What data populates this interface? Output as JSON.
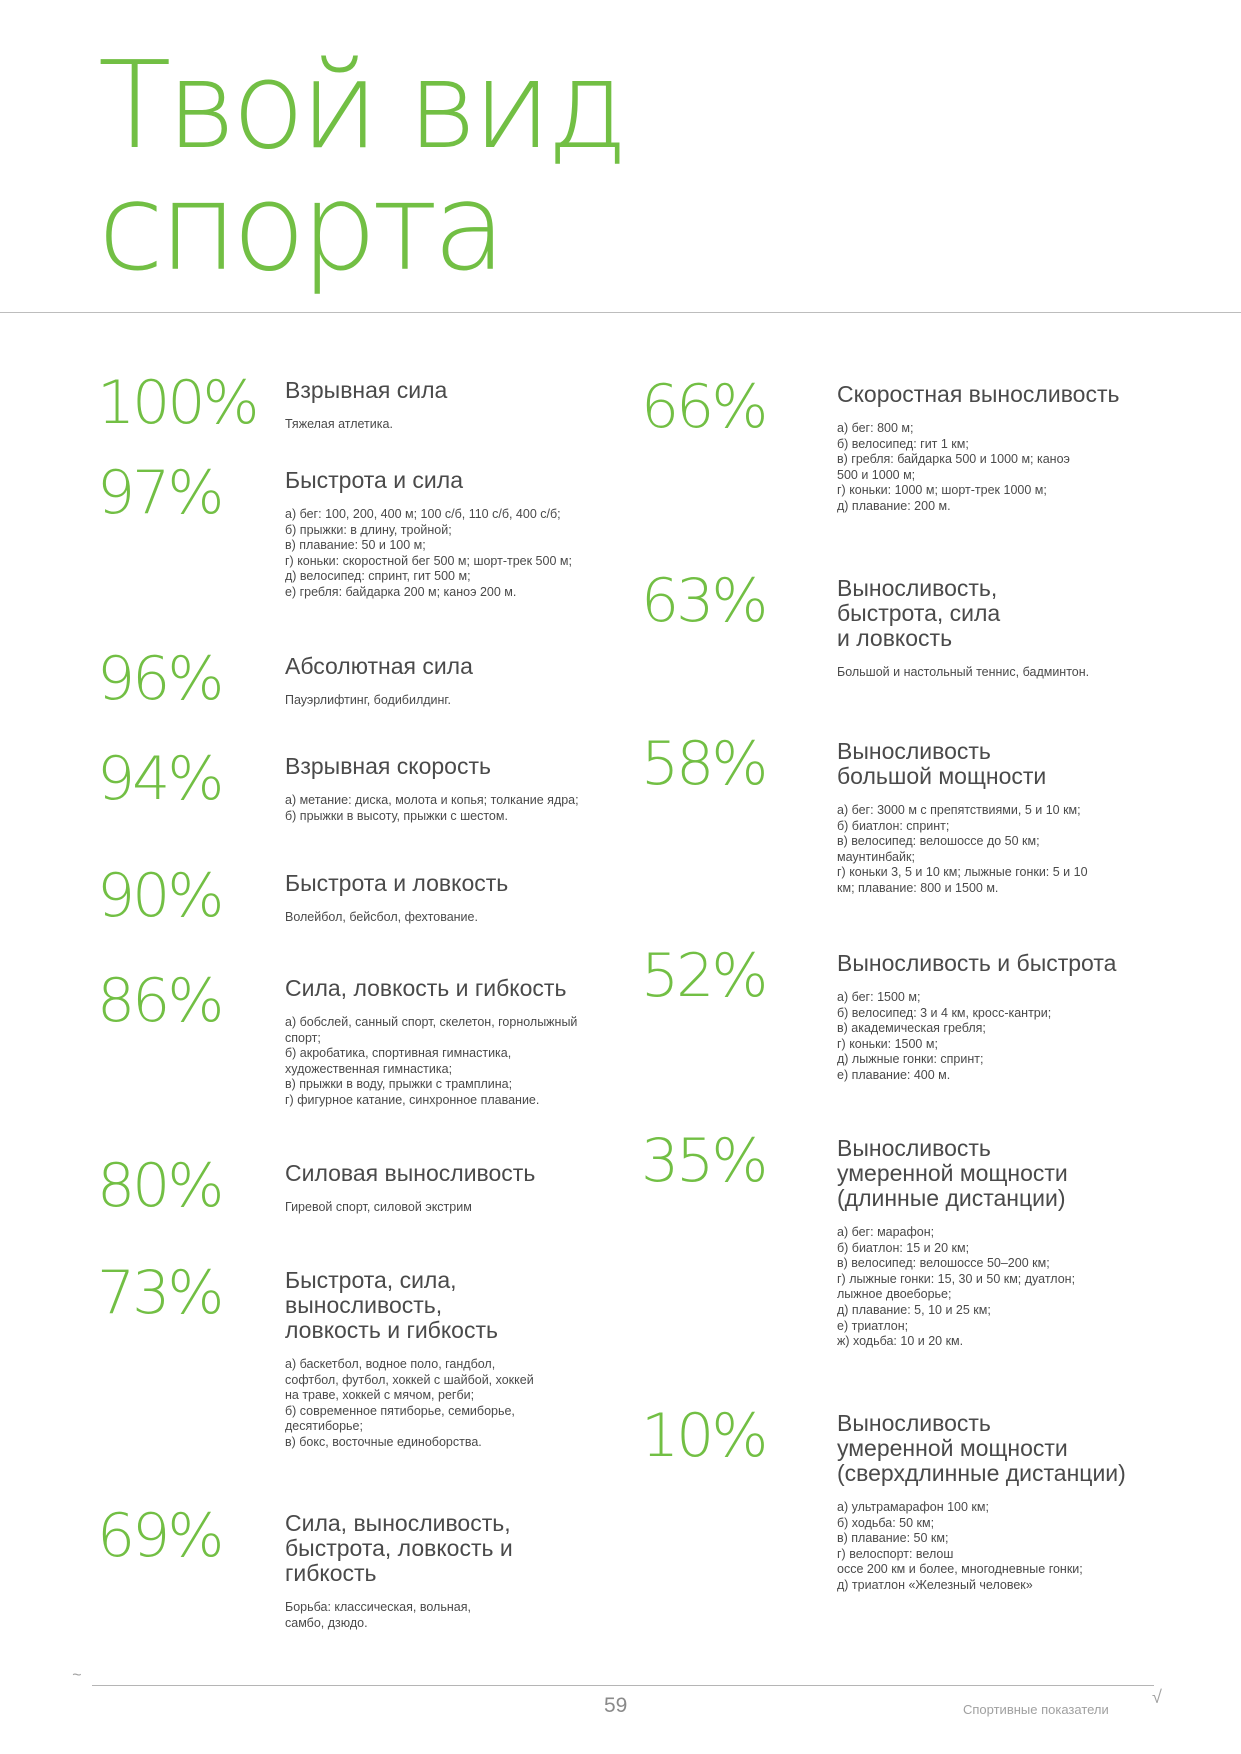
{
  "title": {
    "line1": "Твой вид",
    "line2": "спорта"
  },
  "accent_color": "#72bf44",
  "items": [
    {
      "pct": "100%",
      "title": "Взрывная сила",
      "desc": "Тяжелая атлетика."
    },
    {
      "pct": "97%",
      "title": "Быстрота и сила",
      "desc": "а) бег: 100, 200, 400 м; 100 с/б, 110 с/б, 400 с/б;\nб) прыжки: в длину, тройной;\nв) плавание: 50 и 100 м;\nг) коньки: скоростной бег 500 м; шорт-трек 500 м;\nд) велосипед: спринт, гит 500 м;\nе) гребля: байдарка 200 м; каноэ 200 м."
    },
    {
      "pct": "96%",
      "title": "Абсолютная сила",
      "desc": "Пауэрлифтинг, бодибилдинг."
    },
    {
      "pct": "94%",
      "title": "Взрывная скорость",
      "desc": "а) метание: диска, молота и копья; толкание ядра;\nб) прыжки в высоту, прыжки с шестом."
    },
    {
      "pct": "90%",
      "title": "Быстрота и ловкость",
      "desc": "Волейбол, бейсбол, фехтование."
    },
    {
      "pct": "86%",
      "title": "Сила, ловкость и гибкость",
      "desc": "а) бобслей, санный спорт, скелетон, горнолыжный\nспорт;\nб) акробатика, спортивная гимнастика,\nхудожественная гимнастика;\nв) прыжки в воду, прыжки с трамплина;\nг) фигурное катание, синхронное плавание."
    },
    {
      "pct": "80%",
      "title": "Силовая выносливость",
      "desc": "Гиревой спорт, силовой экстрим"
    },
    {
      "pct": "73%",
      "title": "Быстрота, сила,\nвыносливость,\nловкость и гибкость",
      "desc": "а) баскетбол, водное поло, гандбол,\nсофтбол, футбол, хоккей с шайбой, хоккей\nна траве, хоккей с мячом, регби;\nб) современное пятиборье, семиборье,\nдесятиборье;\nв) бокс, восточные единоборства."
    },
    {
      "pct": "69%",
      "title": "Сила, выносливость,\nбыстрота, ловкость и\nгибкость",
      "desc": "Борьба: классическая, вольная,\nсамбо, дзюдо."
    },
    {
      "pct": "66%",
      "title": "Скоростная выносливость",
      "desc": "а) бег: 800 м;\nб) велосипед: гит 1 км;\nв) гребля: байдарка 500 и 1000 м; каноэ\n500 и 1000 м;\nг) коньки: 1000 м; шорт-трек 1000 м;\nд) плавание: 200 м."
    },
    {
      "pct": "63%",
      "title": "Выносливость,\nбыстрота, сила\nи ловкость",
      "desc": "Большой и настольный теннис, бадминтон."
    },
    {
      "pct": "58%",
      "title": "Выносливость\nбольшой мощности",
      "desc": "а) бег: 3000 м с препятствиями, 5 и 10 км;\nб) биатлон: спринт;\nв) велосипед: велошоссе до 50 км;\nмаунтинбайк;\nг) коньки 3, 5 и 10 км; лыжные гонки: 5 и 10\nкм; плавание: 800 и 1500 м."
    },
    {
      "pct": "52%",
      "title": "Выносливость и быстрота",
      "desc": "а) бег: 1500 м;\nб) велосипед: 3 и 4 км, кросс-кантри;\nв) академическая гребля;\nг) коньки: 1500 м;\nд) лыжные гонки: спринт;\nе) плавание: 400 м."
    },
    {
      "pct": "35%",
      "title": "Выносливость\nумеренной мощности\n(длинные дистанции)",
      "desc": "а) бег: марафон;\nб) биатлон: 15 и 20 км;\nв) велосипед: велошоссе 50–200 км;\nг) лыжные гонки: 15, 30 и 50 км; дуатлон;\nлыжное двоеборье;\nд) плавание: 5, 10 и 25 км;\nе) триатлон;\nж) ходьба: 10 и 20 км."
    },
    {
      "pct": "10%",
      "title": "Выносливость\nумеренной мощности\n(сверхдлинные дистанции)",
      "desc": "а) ультрамарафон 100 км;\nб) ходьба: 50 км;\nв) плавание: 50 км;\nг) велоспорт: велош\nоссе 200 км и более, многодневные гонки;\nд) триатлон «Железный человек»"
    }
  ],
  "footer": {
    "page_number": "59",
    "section": "Спортивные показатели"
  }
}
